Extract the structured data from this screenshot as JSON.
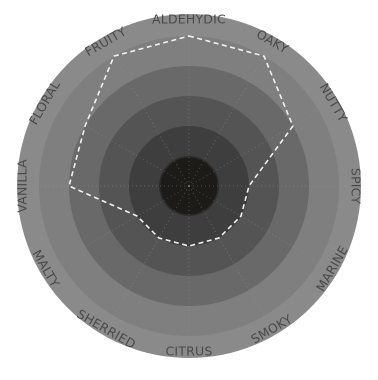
{
  "chart_data": {
    "type": "radar",
    "title": "",
    "axes": [
      "ALDEHYDIC",
      "OAKY",
      "NUTTY",
      "SPICY",
      "MARINE",
      "SMOKY",
      "CITRUS",
      "SHERRIED",
      "MALTY",
      "VANILLA",
      "FLORAL",
      "FRUITY"
    ],
    "series": [
      {
        "values": [
          5,
          5,
          4,
          2,
          2,
          2,
          2,
          2,
          2,
          4,
          4,
          5
        ]
      }
    ],
    "rlim": [
      0,
      5
    ],
    "levels": 5,
    "ring_colors": [
      "#1d1b18",
      "#2c2c2c",
      "#3e3e3e",
      "#545454",
      "#696969",
      "#7f7f7f"
    ],
    "outer_ring_color": "#8a8a8a",
    "series_color": "#f2f2f2",
    "series_line_style": "dashed",
    "grid_spokes": "dotted",
    "label_color": "#4a4a4a"
  }
}
